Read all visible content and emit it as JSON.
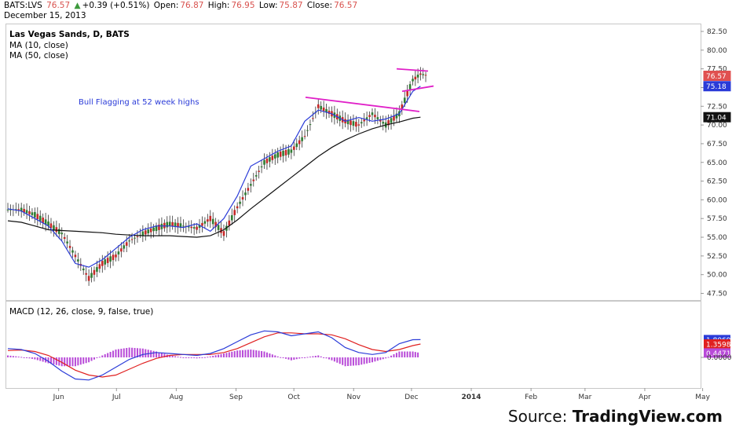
{
  "header": {
    "symbol": "BATS:LVS",
    "price": "76.57",
    "change": "+0.39 (+0.51%)",
    "open_label": "Open:",
    "open": "76.87",
    "high_label": "High:",
    "high": "76.95",
    "low_label": "Low:",
    "low": "75.87",
    "close_label": "Close:",
    "close": "76.57",
    "date": "December 15, 2013"
  },
  "price_panel": {
    "title": "Las Vegas Sands, D, BATS",
    "ma10": "MA (10, close)",
    "ma50": "MA (50, close)",
    "annotation": "Bull Flagging at 52 week highs",
    "last_tag": "76.57",
    "ma10_tag": "75.18",
    "ma50_tag": "71.04"
  },
  "macd_panel": {
    "title": "MACD (12, 26, close, 9, false, true)",
    "macd_tag": "1.8069",
    "signal_tag": "1.3598",
    "hist_tag": "0.4471",
    "zero_tick": "0.0000"
  },
  "x_ticks": [
    "Jun",
    "Jul",
    "Aug",
    "Sep",
    "Oct",
    "Nov",
    "Dec",
    "2014",
    "Feb",
    "Mar",
    "Apr",
    "May"
  ],
  "y_ticks": [
    "82.50",
    "80.00",
    "77.50",
    "75.00",
    "72.50",
    "70.00",
    "67.50",
    "65.00",
    "62.50",
    "60.00",
    "57.50",
    "55.00",
    "52.50",
    "50.00",
    "47.50"
  ],
  "source": {
    "prefix": "Source: ",
    "brand": "TradingView.com"
  },
  "colors": {
    "up": "#2e7d32",
    "down": "#c62828",
    "ma10": "#2a3bd8",
    "ma50": "#111111",
    "trendline": "#e020c8",
    "macd": "#2a3bd8",
    "signal": "#e02020",
    "hist": "#b84ad8"
  },
  "chart_data": {
    "type": "line",
    "title": "Las Vegas Sands, D, BATS",
    "ylim": [
      47.5,
      82.5
    ],
    "x": [
      "2013-05-13",
      "2013-05-20",
      "2013-05-27",
      "2013-06-03",
      "2013-06-10",
      "2013-06-17",
      "2013-06-24",
      "2013-07-01",
      "2013-07-08",
      "2013-07-15",
      "2013-07-22",
      "2013-07-29",
      "2013-08-05",
      "2013-08-12",
      "2013-08-19",
      "2013-08-26",
      "2013-09-02",
      "2013-09-09",
      "2013-09-16",
      "2013-09-23",
      "2013-09-30",
      "2013-10-07",
      "2013-10-14",
      "2013-10-21",
      "2013-10-28",
      "2013-11-04",
      "2013-11-11",
      "2013-11-18",
      "2013-11-25",
      "2013-12-02",
      "2013-12-09",
      "2013-12-13"
    ],
    "series": [
      {
        "name": "MA (10, close)",
        "values": [
          58.8,
          58.5,
          57.5,
          56.5,
          54.5,
          51.5,
          51.0,
          52.0,
          53.5,
          55.0,
          56.0,
          56.5,
          56.5,
          56.3,
          56.8,
          55.8,
          57.5,
          60.5,
          64.5,
          65.5,
          66.5,
          67.2,
          70.5,
          72.0,
          71.5,
          70.5,
          71.0,
          70.5,
          70.8,
          71.5,
          74.5,
          75.18
        ]
      },
      {
        "name": "MA (50, close)",
        "values": [
          57.2,
          57.0,
          56.5,
          56.0,
          55.9,
          55.8,
          55.7,
          55.6,
          55.4,
          55.3,
          55.2,
          55.2,
          55.2,
          55.1,
          55.0,
          55.2,
          56.0,
          57.3,
          58.8,
          60.2,
          61.6,
          63.0,
          64.4,
          65.8,
          67.0,
          68.0,
          68.8,
          69.5,
          70.0,
          70.4,
          70.9,
          71.04
        ]
      },
      {
        "name": "Close",
        "values": [
          58.7,
          58.0,
          56.8,
          55.5,
          52.5,
          49.5,
          51.5,
          52.5,
          54.5,
          55.5,
          56.2,
          56.8,
          56.5,
          56.2,
          57.5,
          55.5,
          59.0,
          62.0,
          65.0,
          66.0,
          66.5,
          68.5,
          72.5,
          71.5,
          70.5,
          70.0,
          71.5,
          70.0,
          71.5,
          76.0,
          76.8,
          76.57
        ]
      }
    ],
    "annotations": [
      "Bull Flagging at 52 week highs"
    ],
    "macd": {
      "title": "MACD (12, 26, close, 9, false, true)",
      "macd": [
        0.9,
        0.8,
        0.4,
        -0.4,
        -1.4,
        -2.2,
        -2.3,
        -1.8,
        -1.0,
        -0.2,
        0.3,
        0.5,
        0.4,
        0.3,
        0.2,
        0.4,
        0.9,
        1.6,
        2.3,
        2.7,
        2.6,
        2.2,
        2.4,
        2.6,
        2.0,
        1.0,
        0.5,
        0.3,
        0.5,
        1.4,
        1.8,
        1.8069
      ],
      "signal": [
        0.7,
        0.75,
        0.6,
        0.2,
        -0.5,
        -1.3,
        -1.8,
        -2.0,
        -1.8,
        -1.2,
        -0.6,
        -0.1,
        0.2,
        0.3,
        0.3,
        0.3,
        0.5,
        0.9,
        1.5,
        2.1,
        2.5,
        2.5,
        2.4,
        2.4,
        2.3,
        1.9,
        1.3,
        0.8,
        0.6,
        0.8,
        1.2,
        1.3598
      ],
      "hist": [
        0.2,
        0.05,
        -0.2,
        -0.6,
        -0.9,
        -0.9,
        -0.5,
        0.2,
        0.8,
        1.0,
        0.9,
        0.6,
        0.2,
        0.0,
        -0.1,
        0.1,
        0.4,
        0.7,
        0.8,
        0.6,
        0.1,
        -0.3,
        0.0,
        0.2,
        -0.3,
        -0.9,
        -0.8,
        -0.5,
        -0.1,
        0.6,
        0.6,
        0.4471
      ]
    }
  }
}
